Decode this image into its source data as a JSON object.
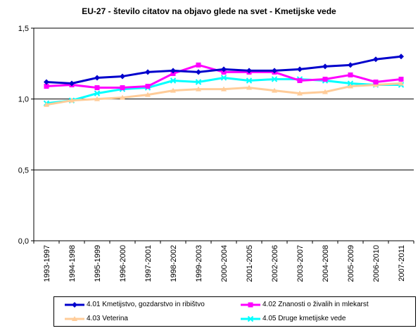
{
  "chart_data": {
    "type": "line",
    "title": "EU-27 - število citatov na objavo glede na svet - Kmetijske vede",
    "xlabel": "",
    "ylabel": "",
    "categories": [
      "1993-1997",
      "1994-1998",
      "1995-1999",
      "1996-2000",
      "1997-2001",
      "1998-2002",
      "1999-2003",
      "2000-2004",
      "2001-2005",
      "2002-2006",
      "2003-2007",
      "2004-2008",
      "2005-2009",
      "2006-2010",
      "2007-2011"
    ],
    "ylim": [
      0,
      1.5
    ],
    "yticks": [
      0,
      0.5,
      1.0,
      1.5
    ],
    "ytick_labels": [
      "0,0",
      "0,5",
      "1,0",
      "1,5"
    ],
    "grid": "horizontal major gridlines",
    "legend_position": "bottom",
    "series": [
      {
        "name": "4.01 Kmetijstvo, gozdarstvo in ribištvo",
        "color": "#0000CC",
        "marker": "diamond",
        "values": [
          1.12,
          1.11,
          1.15,
          1.16,
          1.19,
          1.2,
          1.19,
          1.21,
          1.2,
          1.2,
          1.21,
          1.23,
          1.24,
          1.28,
          1.3
        ]
      },
      {
        "name": "4.02 Znanosti o živalih in mlekarst",
        "color": "#FF00FF",
        "marker": "square",
        "values": [
          1.09,
          1.1,
          1.08,
          1.08,
          1.09,
          1.18,
          1.24,
          1.19,
          1.19,
          1.19,
          1.13,
          1.14,
          1.17,
          1.12,
          1.14
        ]
      },
      {
        "name": "4.03 Veterina",
        "color": "#FFCC99",
        "marker": "triangle",
        "values": [
          0.96,
          0.99,
          1.0,
          1.01,
          1.03,
          1.06,
          1.07,
          1.07,
          1.08,
          1.06,
          1.04,
          1.05,
          1.09,
          1.1,
          1.11
        ]
      },
      {
        "name": "4.05 Druge kmetijske vede",
        "color": "#00FFFF",
        "marker": "x",
        "values": [
          0.97,
          0.99,
          1.04,
          1.07,
          1.08,
          1.13,
          1.12,
          1.15,
          1.13,
          1.14,
          1.14,
          1.13,
          1.11,
          1.1,
          1.1
        ]
      }
    ]
  }
}
